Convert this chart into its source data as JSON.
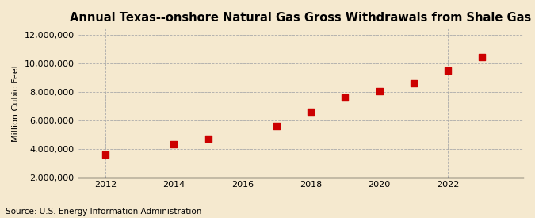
{
  "title": "Annual Texas--onshore Natural Gas Gross Withdrawals from Shale Gas",
  "ylabel": "Million Cubic Feet",
  "source": "Source: U.S. Energy Information Administration",
  "years": [
    2012,
    2014,
    2015,
    2017,
    2018,
    2019,
    2020,
    2021,
    2022,
    2023
  ],
  "values": [
    3600000,
    4350000,
    4720000,
    5600000,
    6620000,
    7620000,
    8080000,
    8620000,
    9500000,
    10450000
  ],
  "marker_color": "#cc0000",
  "marker_size": 36,
  "background_color": "#f5e9cf",
  "plot_bg_color": "#f5e9cf",
  "grid_color": "#aaaaaa",
  "xlim": [
    2011.2,
    2024.2
  ],
  "ylim": [
    2000000,
    12500000
  ],
  "xticks": [
    2012,
    2014,
    2016,
    2018,
    2020,
    2022
  ],
  "yticks": [
    2000000,
    4000000,
    6000000,
    8000000,
    10000000,
    12000000
  ],
  "title_fontsize": 10.5,
  "label_fontsize": 8,
  "tick_fontsize": 8,
  "source_fontsize": 7.5
}
